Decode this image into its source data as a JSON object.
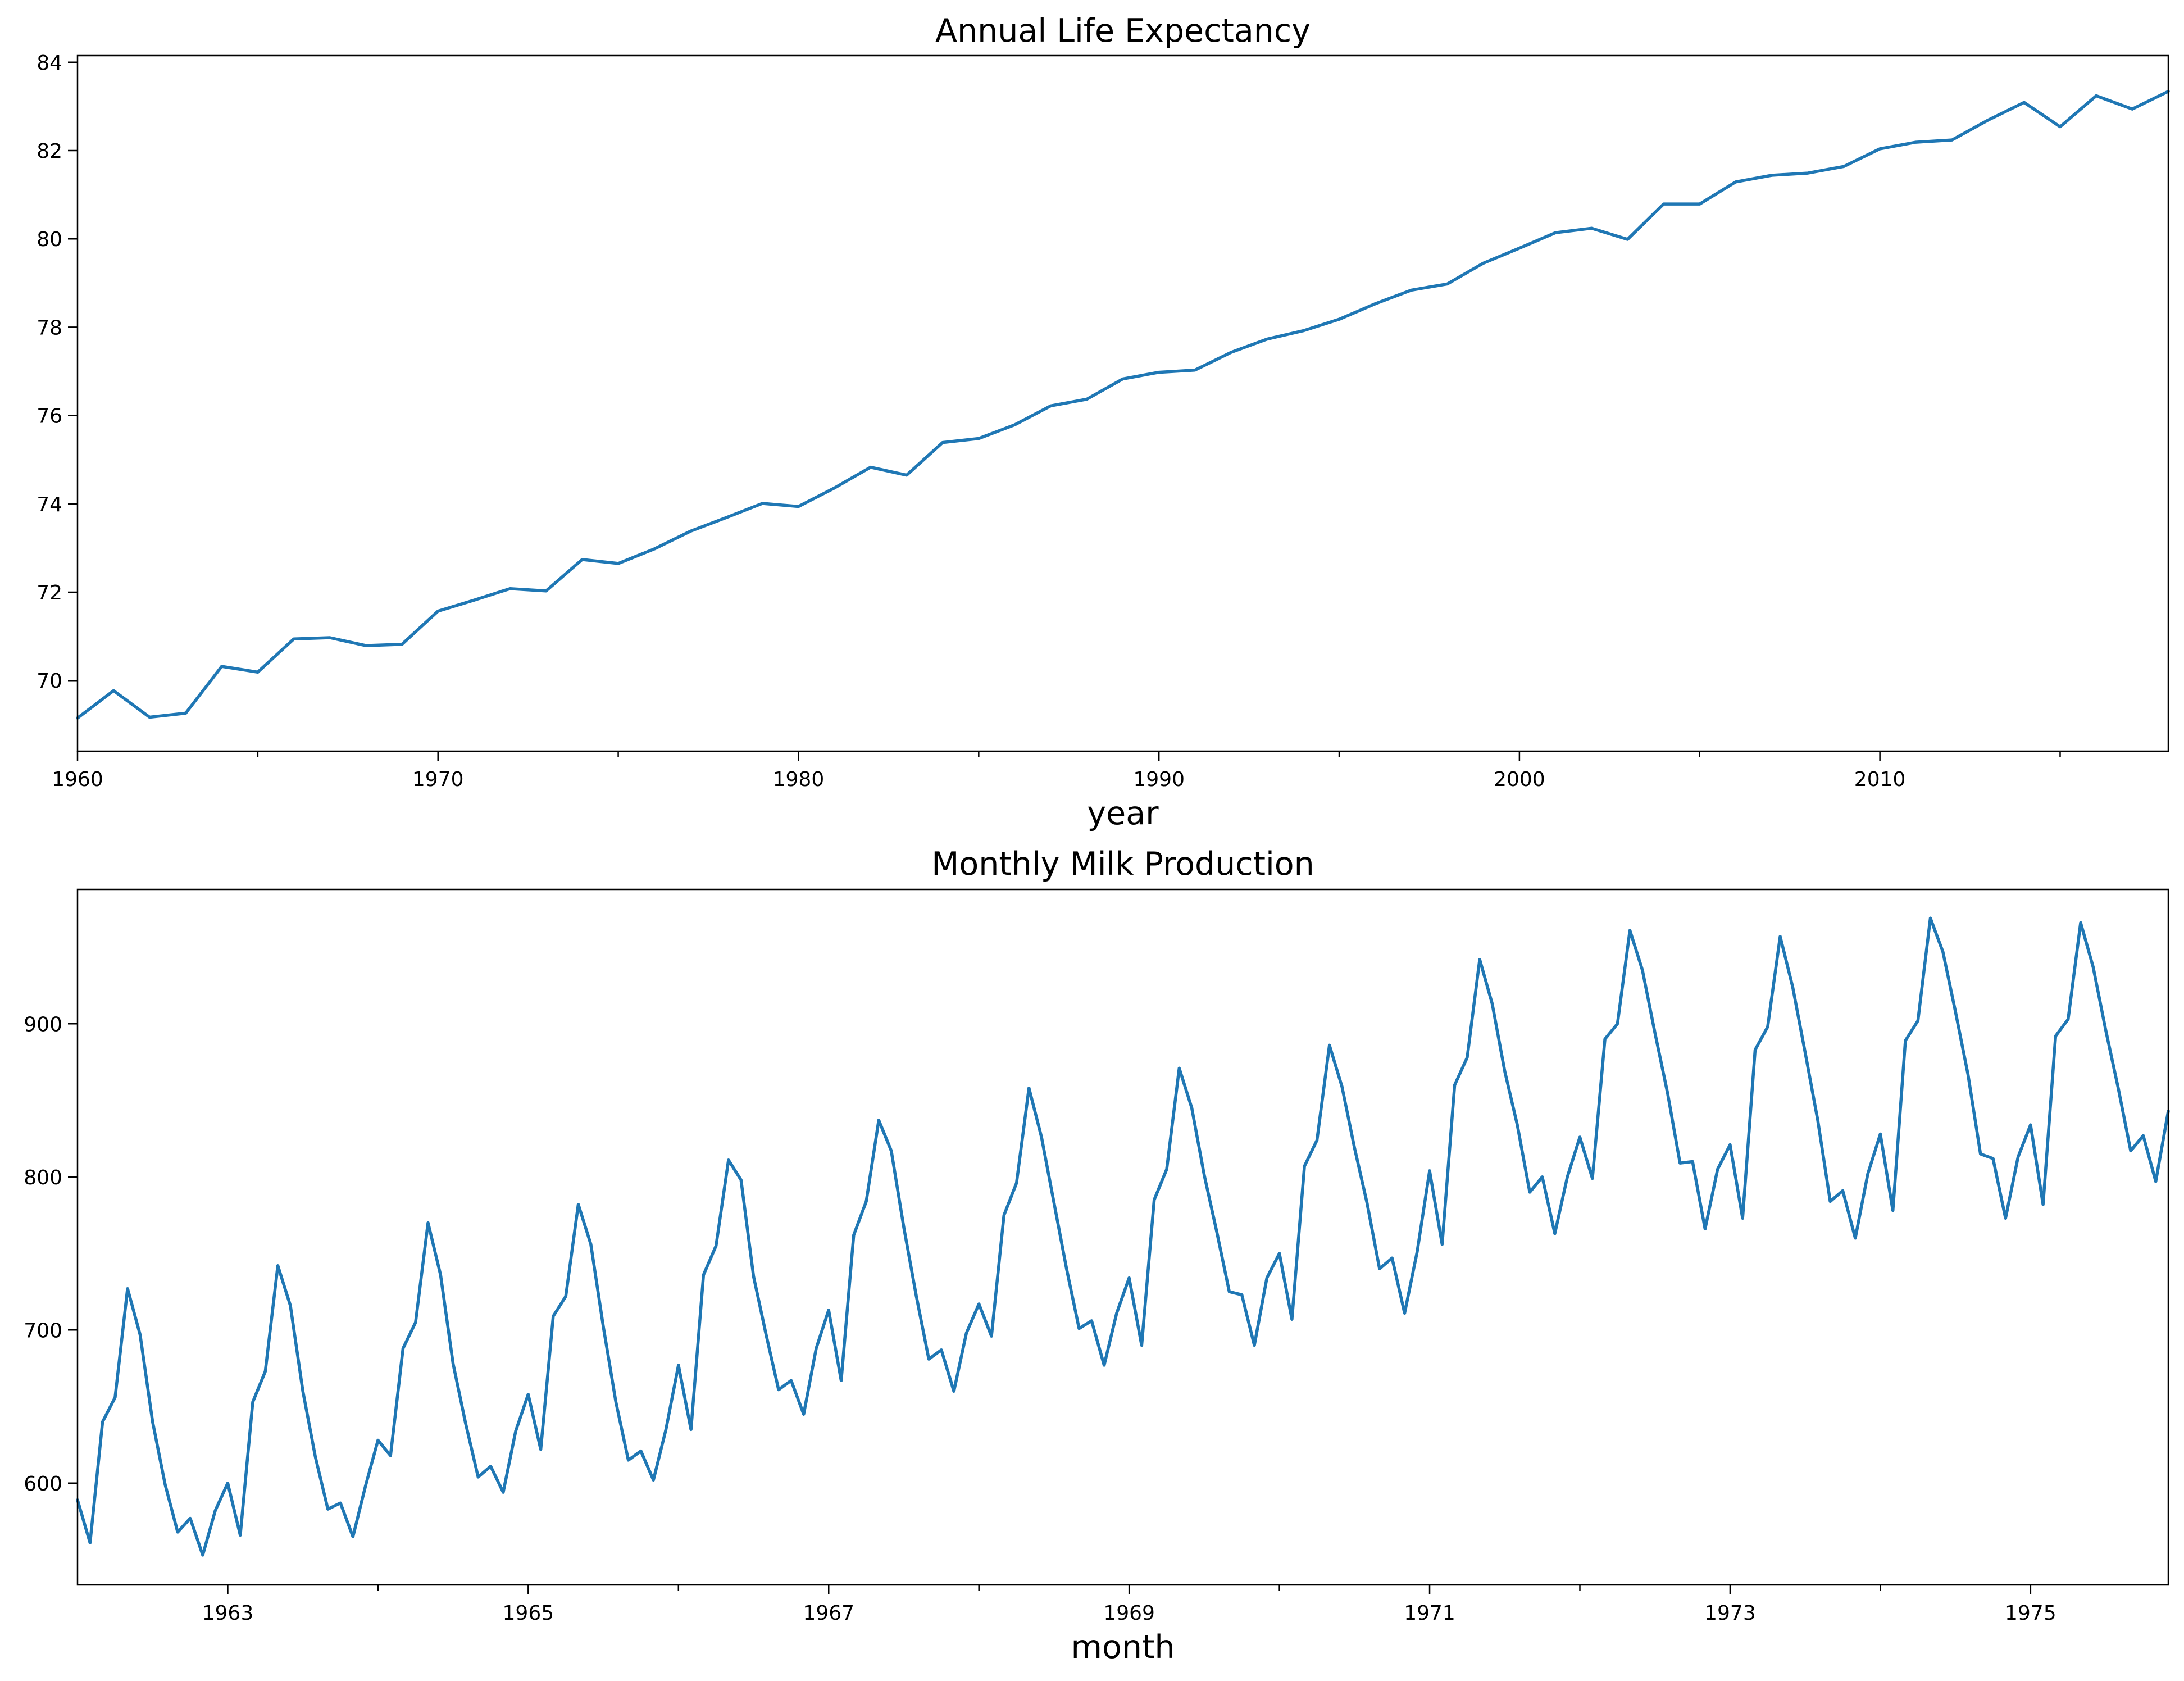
{
  "colors": {
    "series": "#1f77b4",
    "axes": "#000000",
    "background": "#ffffff"
  },
  "chart_data": [
    {
      "type": "line",
      "title": "Annual Life Expectancy",
      "xlabel": "year",
      "ylabel": "",
      "grid": false,
      "xlim": [
        1960,
        2018
      ],
      "ylim": [
        68.4,
        84.15
      ],
      "xticks": [
        1960,
        1970,
        1980,
        1990,
        2000,
        2010
      ],
      "minor_xticks": [
        1965,
        1975,
        1985,
        1995,
        2005,
        2015
      ],
      "yticks": [
        70,
        72,
        74,
        76,
        78,
        80,
        82,
        84
      ],
      "x": [
        1960,
        1961,
        1962,
        1963,
        1964,
        1965,
        1966,
        1967,
        1968,
        1969,
        1970,
        1971,
        1972,
        1973,
        1974,
        1975,
        1976,
        1977,
        1978,
        1979,
        1980,
        1981,
        1982,
        1983,
        1984,
        1985,
        1986,
        1987,
        1988,
        1989,
        1990,
        1991,
        1992,
        1993,
        1994,
        1995,
        1996,
        1997,
        1998,
        1999,
        2000,
        2001,
        2002,
        2003,
        2004,
        2005,
        2006,
        2007,
        2008,
        2009,
        2010,
        2011,
        2012,
        2013,
        2014,
        2015,
        2016,
        2017,
        2018
      ],
      "y": [
        69.15,
        69.77,
        69.17,
        69.26,
        70.32,
        70.19,
        70.94,
        70.97,
        70.79,
        70.82,
        71.57,
        71.82,
        72.08,
        72.03,
        72.74,
        72.65,
        72.98,
        73.38,
        73.69,
        74.01,
        73.94,
        74.36,
        74.83,
        74.65,
        75.39,
        75.48,
        75.79,
        76.22,
        76.37,
        76.83,
        76.98,
        77.03,
        77.43,
        77.73,
        77.92,
        78.18,
        78.53,
        78.84,
        78.98,
        79.45,
        79.79,
        80.14,
        80.24,
        79.99,
        80.79,
        80.79,
        81.29,
        81.44,
        81.49,
        81.64,
        82.04,
        82.19,
        82.24,
        82.69,
        83.09,
        82.54,
        83.24,
        82.94,
        83.34
      ]
    },
    {
      "type": "line",
      "title": "Monthly Milk Production",
      "xlabel": "month",
      "ylabel": "",
      "grid": false,
      "x_start": "1962-01",
      "x_end": "1975-12",
      "xlim": [
        "1962-01",
        "1975-12"
      ],
      "ylim": [
        533.5,
        987.8
      ],
      "xticks": [
        "1963-01",
        "1965-01",
        "1967-01",
        "1969-01",
        "1971-01",
        "1973-01",
        "1975-01"
      ],
      "xtick_labels": [
        "1963",
        "1965",
        "1967",
        "1969",
        "1971",
        "1973",
        "1975"
      ],
      "minor_xticks": [
        "1964-01",
        "1966-01",
        "1968-01",
        "1970-01",
        "1972-01",
        "1974-01"
      ],
      "yticks": [
        600,
        700,
        800,
        900
      ],
      "values": [
        589,
        561,
        640,
        656,
        727,
        697,
        640,
        599,
        568,
        577,
        553,
        582,
        600,
        566,
        653,
        673,
        742,
        716,
        660,
        617,
        583,
        587,
        565,
        598,
        628,
        618,
        688,
        705,
        770,
        736,
        678,
        639,
        604,
        611,
        594,
        634,
        658,
        622,
        709,
        722,
        782,
        756,
        702,
        653,
        615,
        621,
        602,
        635,
        677,
        635,
        736,
        755,
        811,
        798,
        735,
        697,
        661,
        667,
        645,
        688,
        713,
        667,
        762,
        784,
        837,
        817,
        767,
        722,
        681,
        687,
        660,
        698,
        717,
        696,
        775,
        796,
        858,
        826,
        783,
        740,
        701,
        706,
        677,
        711,
        734,
        690,
        785,
        805,
        871,
        845,
        801,
        764,
        725,
        723,
        690,
        734,
        750,
        707,
        807,
        824,
        886,
        859,
        819,
        783,
        740,
        747,
        711,
        751,
        804,
        756,
        860,
        878,
        942,
        913,
        869,
        834,
        790,
        800,
        763,
        800,
        826,
        799,
        890,
        900,
        961,
        935,
        894,
        855,
        809,
        810,
        766,
        805,
        821,
        773,
        883,
        898,
        957,
        924,
        881,
        837,
        784,
        791,
        760,
        802,
        828,
        778,
        889,
        902,
        969,
        947,
        908,
        867,
        815,
        812,
        773,
        813,
        834,
        782,
        892,
        903,
        966,
        937,
        896,
        858,
        817,
        827,
        797,
        843
      ]
    }
  ]
}
